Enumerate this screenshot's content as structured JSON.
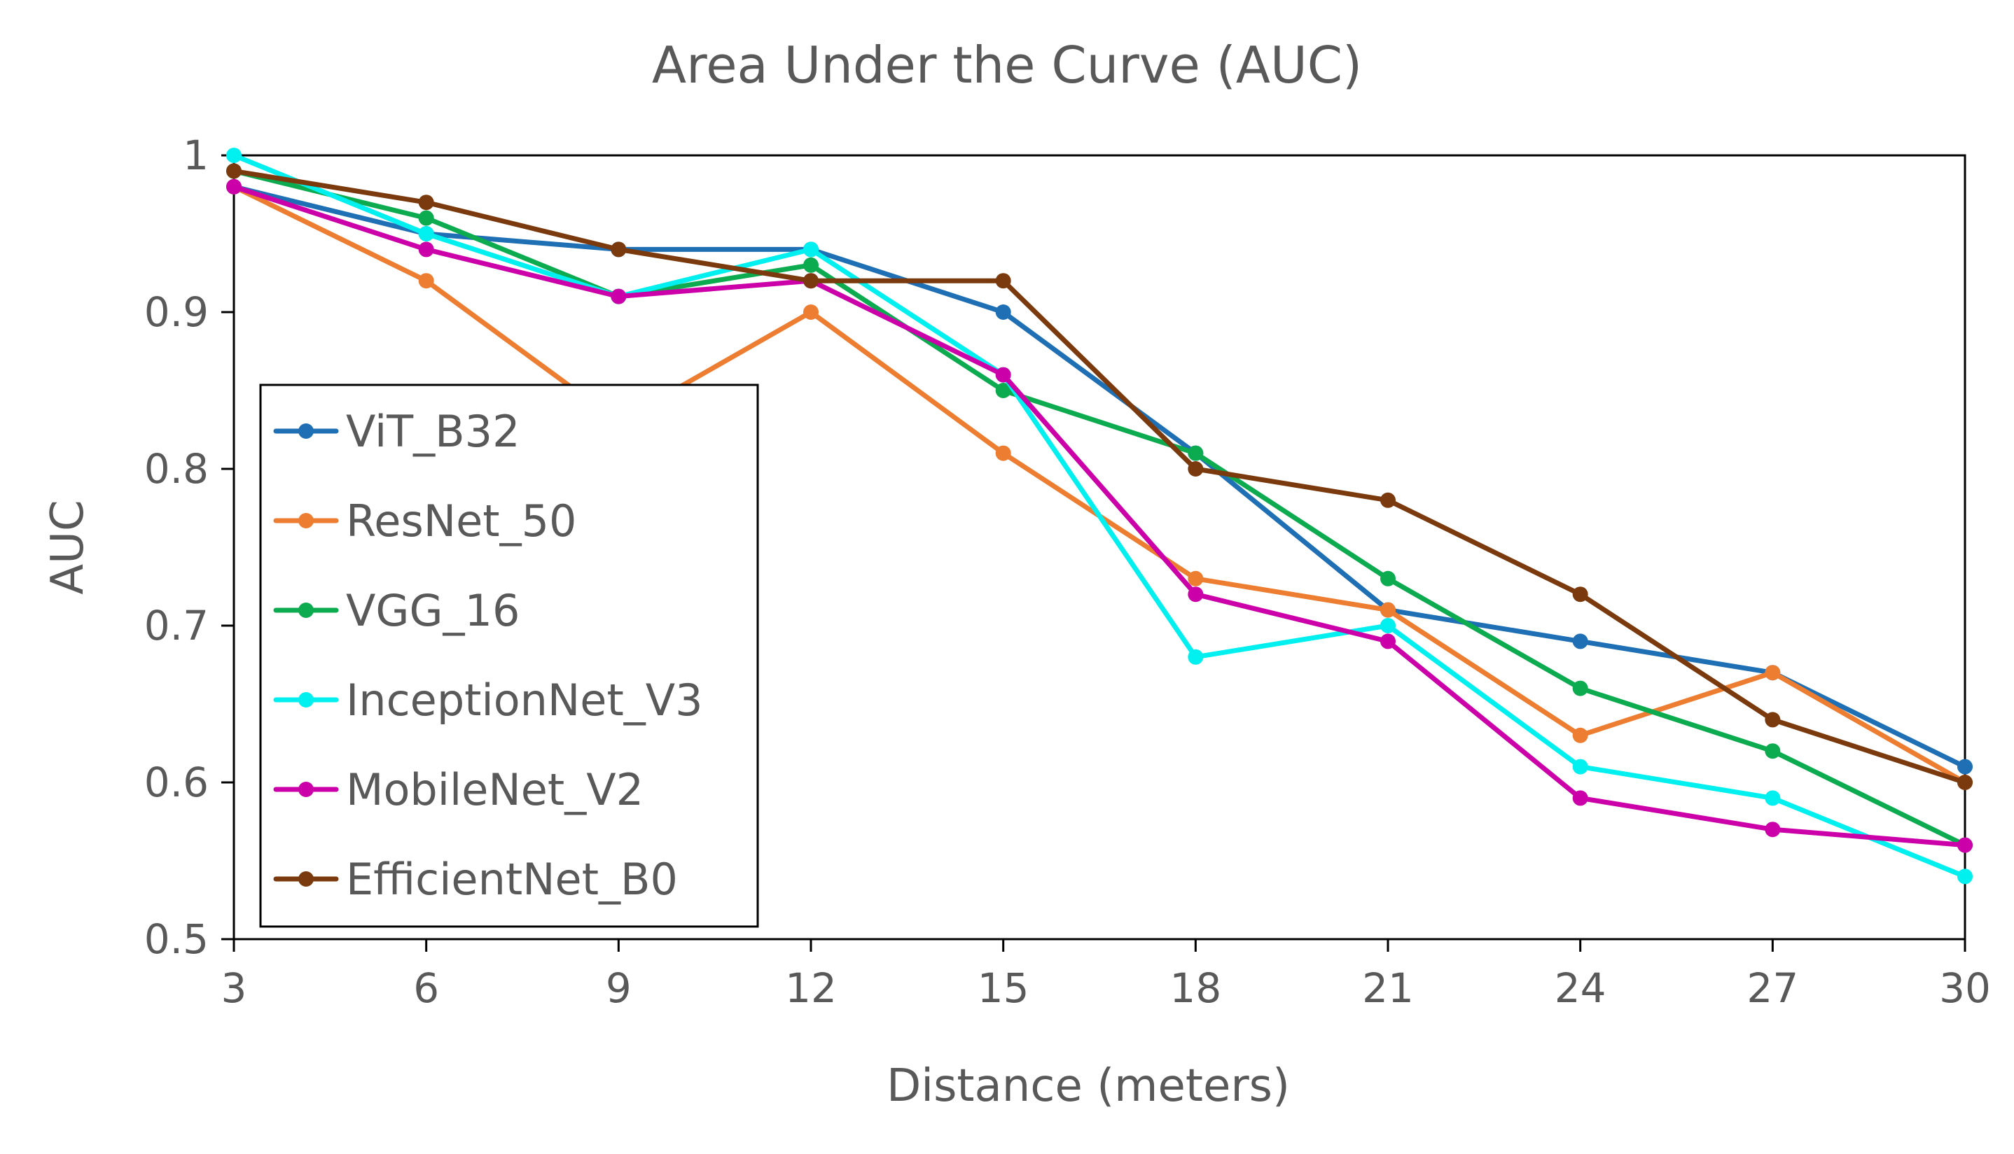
{
  "chart_data": {
    "type": "line",
    "title": "Area Under the Curve (AUC)",
    "xlabel": "Distance (meters)",
    "ylabel": "AUC",
    "x": [
      3,
      6,
      9,
      12,
      15,
      18,
      21,
      24,
      27,
      30
    ],
    "x_tick_labels": [
      "3",
      "6",
      "9",
      "12",
      "15",
      "18",
      "21",
      "24",
      "27",
      "30"
    ],
    "xlim": [
      3,
      30
    ],
    "ylim": [
      0.5,
      1.0
    ],
    "y_ticks": [
      0.5,
      0.6,
      0.7,
      0.8,
      0.9,
      1.0
    ],
    "y_tick_labels": [
      "0.5",
      "0.6",
      "0.7",
      "0.8",
      "0.9",
      "1"
    ],
    "grid": false,
    "legend_position": "left",
    "series": [
      {
        "name": "ViT_B32",
        "color": "#1F6FB4",
        "values": [
          0.98,
          0.95,
          0.94,
          0.94,
          0.9,
          0.81,
          0.71,
          0.69,
          0.67,
          0.61
        ]
      },
      {
        "name": "ResNet_50",
        "color": "#ED7D31",
        "values": [
          0.98,
          0.92,
          0.83,
          0.9,
          0.81,
          0.73,
          0.71,
          0.63,
          0.67,
          0.6
        ]
      },
      {
        "name": "VGG_16",
        "color": "#0CAB50",
        "values": [
          0.99,
          0.96,
          0.91,
          0.93,
          0.85,
          0.81,
          0.73,
          0.66,
          0.62,
          0.56
        ]
      },
      {
        "name": "InceptionNet_V3",
        "color": "#00F0F0",
        "values": [
          1.0,
          0.95,
          0.91,
          0.94,
          0.86,
          0.68,
          0.7,
          0.61,
          0.59,
          0.54
        ]
      },
      {
        "name": "MobileNet_V2",
        "color": "#CC00A8",
        "values": [
          0.98,
          0.94,
          0.91,
          0.92,
          0.86,
          0.72,
          0.69,
          0.59,
          0.57,
          0.56
        ]
      },
      {
        "name": "EfficientNet_B0",
        "color": "#7B3A0E",
        "values": [
          0.99,
          0.97,
          0.94,
          0.92,
          0.92,
          0.8,
          0.78,
          0.72,
          0.64,
          0.6
        ]
      }
    ]
  }
}
